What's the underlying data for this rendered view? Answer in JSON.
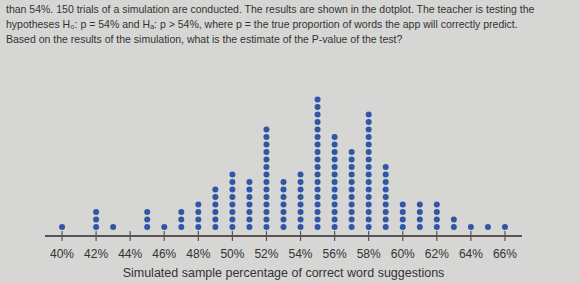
{
  "chart_data": {
    "type": "dotplot",
    "title": [
      "than 54%. 150 trials of a simulation are conducted. The results are shown in the dotplot. The teacher is testing the",
      "hypotheses H₀: p = 54% and Hₐ: p > 54%, where p = the true proportion of words the app will correctly predict.",
      "Based on the results of the simulation, what is the estimate of the P-value of the test?"
    ],
    "x_label": "Simulated sample percentage of correct word suggestions",
    "x": [
      40,
      41,
      42,
      43,
      44,
      45,
      46,
      47,
      48,
      49,
      50,
      51,
      52,
      53,
      54,
      55,
      56,
      57,
      58,
      59,
      60,
      61,
      62,
      63,
      64,
      65,
      66
    ],
    "values": [
      1,
      0,
      3,
      1,
      0,
      3,
      1,
      3,
      4,
      6,
      8,
      7,
      14,
      7,
      8,
      18,
      13,
      11,
      16,
      9,
      4,
      4,
      4,
      2,
      1,
      1,
      1
    ],
    "color": "#2f57a6",
    "xlim": [
      39,
      67
    ],
    "xticks": [
      {
        "value": 40,
        "label": "40%"
      },
      {
        "value": 42,
        "label": "42%"
      },
      {
        "value": 44,
        "label": "44%"
      },
      {
        "value": 46,
        "label": "46%"
      },
      {
        "value": 48,
        "label": "48%"
      },
      {
        "value": 50,
        "label": "50%"
      },
      {
        "value": 52,
        "label": "52%"
      },
      {
        "value": 54,
        "label": "54%"
      },
      {
        "value": 56,
        "label": "56%"
      },
      {
        "value": 58,
        "label": "58%"
      },
      {
        "value": 60,
        "label": "60%"
      },
      {
        "value": 62,
        "label": "62%"
      },
      {
        "value": 64,
        "label": "64%"
      },
      {
        "value": 66,
        "label": "66%"
      }
    ],
    "marker": "circle",
    "tick_labels": "x"
  }
}
